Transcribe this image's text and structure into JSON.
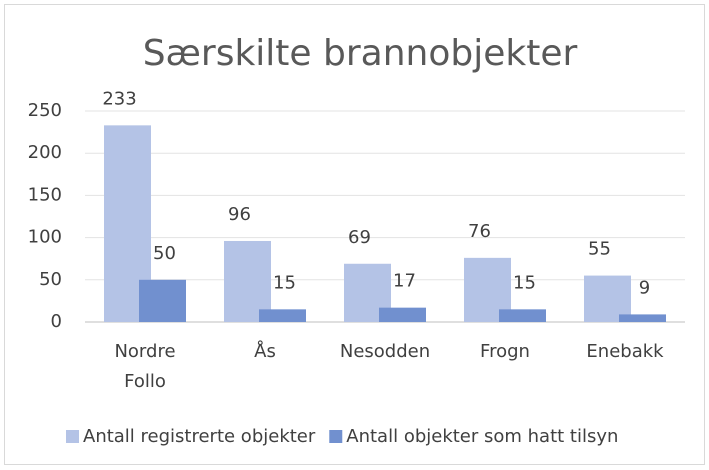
{
  "chart_data": {
    "type": "bar",
    "title": "Særskilte brannobjekter",
    "categories": [
      "Nordre Follo",
      "Ås",
      "Nesodden",
      "Frogn",
      "Enebakk"
    ],
    "series": [
      {
        "name": "Antall registrerte objekter",
        "color": "#b4c3e6",
        "values": [
          233,
          96,
          69,
          76,
          55
        ]
      },
      {
        "name": "Antall objekter som hatt tilsyn",
        "color": "#7190cf",
        "values": [
          50,
          15,
          17,
          15,
          9
        ]
      }
    ],
    "ylim": [
      0,
      250
    ],
    "yticks": [
      0,
      50,
      100,
      150,
      200,
      250
    ],
    "grid": true,
    "legend": "bottom"
  }
}
